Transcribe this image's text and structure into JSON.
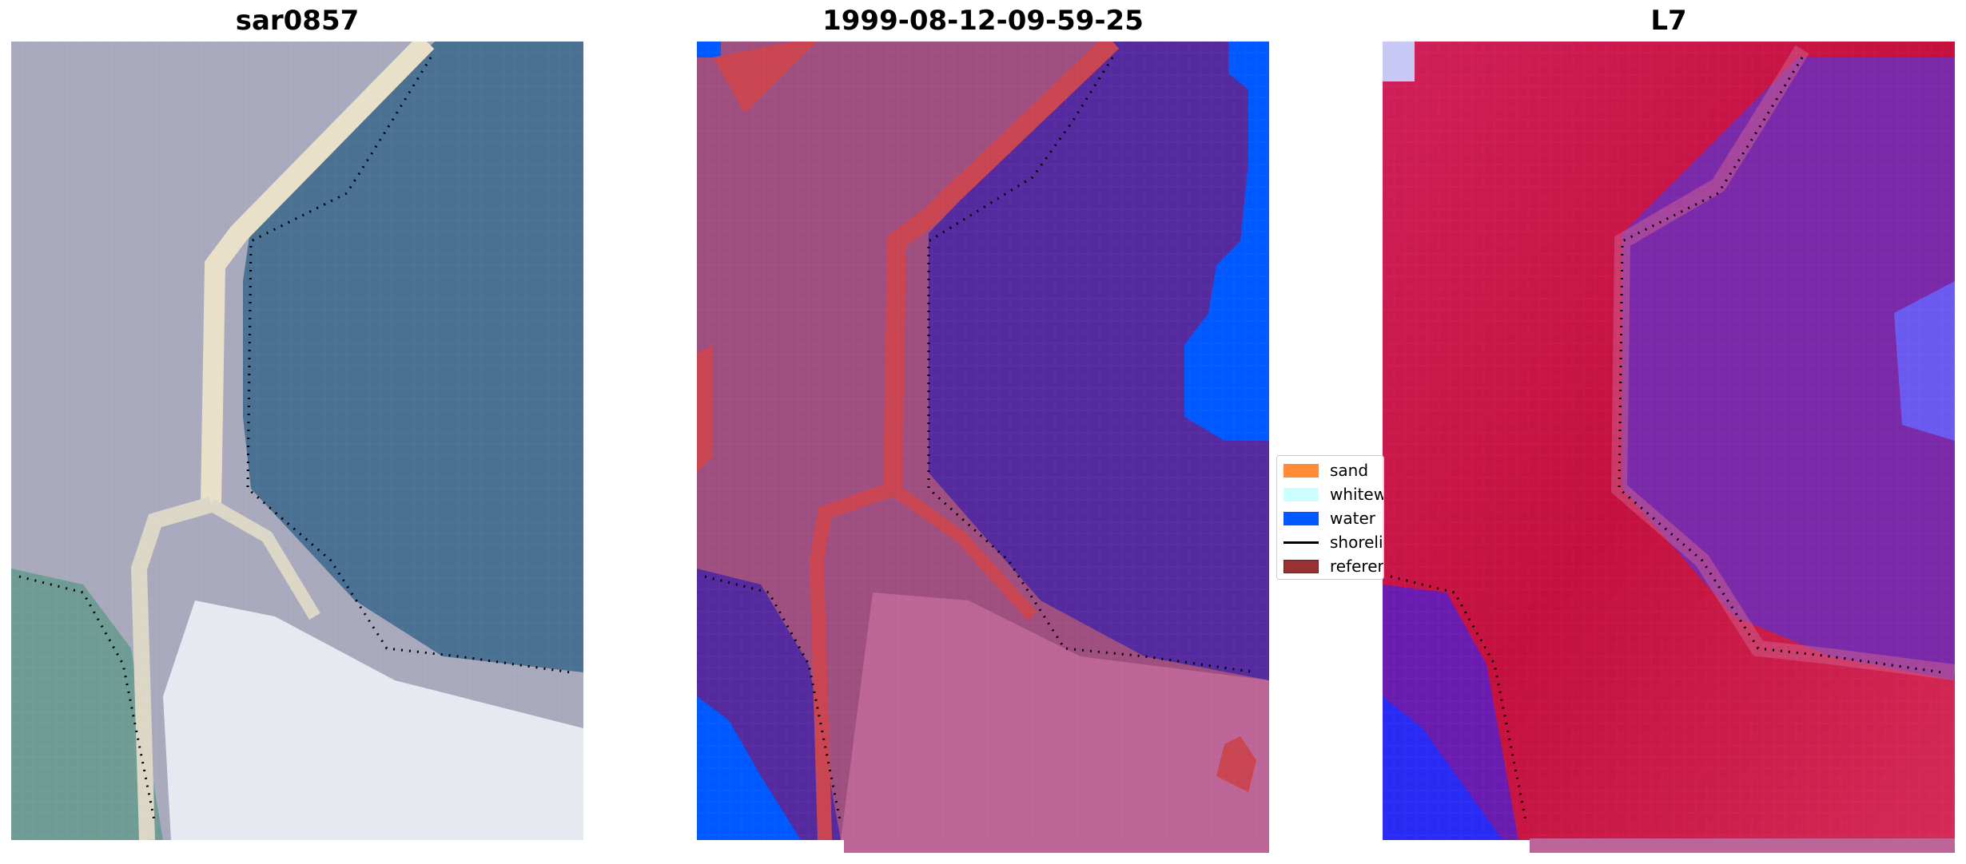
{
  "panels": [
    {
      "title": "sar0857"
    },
    {
      "title": "1999-08-12-09-59-25"
    },
    {
      "title": "L7"
    }
  ],
  "legend": {
    "items": [
      {
        "label": "sand",
        "color": "#ff8c33",
        "kind": "patch"
      },
      {
        "label": "whitewater",
        "color": "#ccffff",
        "kind": "patch"
      },
      {
        "label": "water",
        "color": "#0059ff",
        "kind": "patch"
      },
      {
        "label": "shoreline",
        "color": "#000000",
        "kind": "line"
      },
      {
        "label": "reference shoreline",
        "color": "#993333",
        "kind": "patch"
      }
    ]
  },
  "colors": {
    "rgb_water": "#4a7092",
    "rgb_land": "#a9a9be",
    "rgb_white": "#e8ecf0",
    "rgb_veg": "#6e9c94",
    "class_land": "#9e4f80",
    "class_water_region": "#552a9e",
    "class_water": "#0059ff",
    "class_road": "#c94552",
    "class_sand_light": "#bd6596",
    "mndwi_land": "#cc1040",
    "mndwi_water": "#7a2aa8",
    "mndwi_blue": "#2a2af5"
  }
}
